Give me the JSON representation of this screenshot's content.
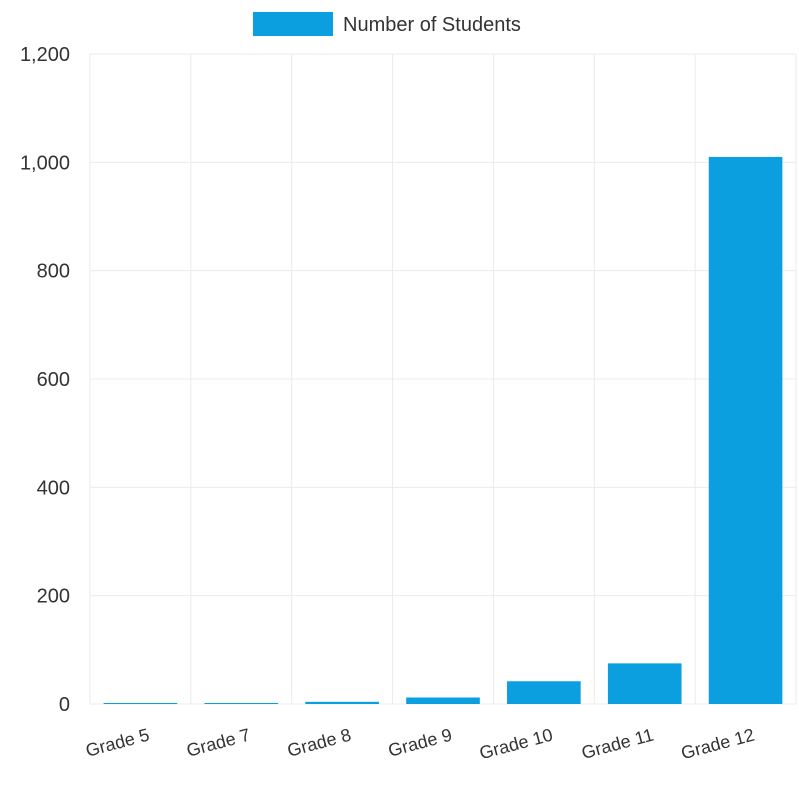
{
  "chart_data": {
    "type": "bar",
    "categories": [
      "Grade 5",
      "Grade 7",
      "Grade 8",
      "Grade 9",
      "Grade 10",
      "Grade 11",
      "Grade 12"
    ],
    "series": [
      {
        "name": "Number of Students",
        "values": [
          1,
          1,
          4,
          12,
          42,
          75,
          1010
        ]
      }
    ],
    "title": "",
    "xlabel": "",
    "ylabel": "",
    "ylim": [
      0,
      1200
    ],
    "yticks": [
      "0",
      "200",
      "400",
      "600",
      "800",
      "1,000",
      "1,200"
    ],
    "grid": true,
    "legend_position": "top-center",
    "colors": {
      "bar": "#0b9fe0",
      "grid": "#ebebeb",
      "text": "#333333"
    }
  }
}
